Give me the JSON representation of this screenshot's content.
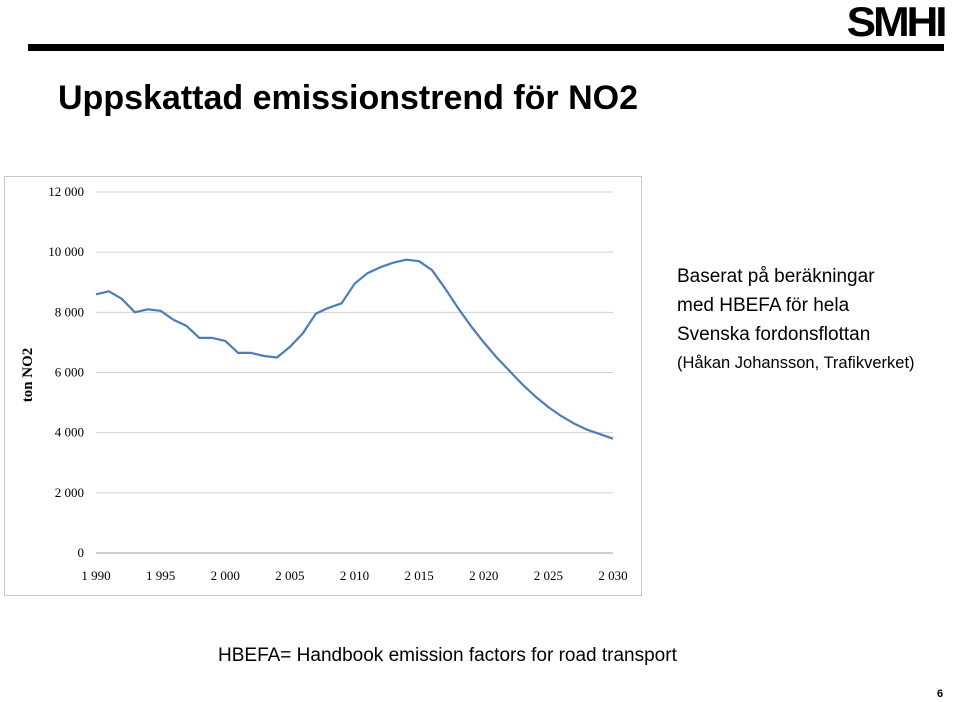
{
  "logo": {
    "text": "SMHI"
  },
  "title": "Uppskattad emissionstrend för NO2",
  "note": {
    "lines": [
      "Baserat på beräkningar",
      "med HBEFA för hela",
      "Svenska fordonsflottan",
      "(Håkan Johansson, Trafikverket)"
    ]
  },
  "footnote": "HBEFA= Handbook emission factors for road transport",
  "page_number": "6",
  "colors": {
    "line": "#4a7ebb",
    "grid": "#d0d0d0",
    "rule": "#000000"
  },
  "chart_data": {
    "type": "line",
    "title": "",
    "xlabel": "",
    "ylabel": "ton NO2",
    "xlim": [
      1990,
      2030
    ],
    "ylim": [
      0,
      12000
    ],
    "x_ticks": [
      1990,
      1995,
      2000,
      2005,
      2010,
      2015,
      2020,
      2025,
      2030
    ],
    "x_tick_labels": [
      "1 990",
      "1 995",
      "2 000",
      "2 005",
      "2 010",
      "2 015",
      "2 020",
      "2 025",
      "2 030"
    ],
    "y_ticks": [
      0,
      2000,
      4000,
      6000,
      8000,
      10000,
      12000
    ],
    "y_tick_labels": [
      "0",
      "2 000",
      "4 000",
      "6 000",
      "8 000",
      "10 000",
      "12 000"
    ],
    "grid": true,
    "series": [
      {
        "x": [
          1990,
          1991,
          1992,
          1993,
          1994,
          1995,
          1996,
          1997,
          1998,
          1999,
          2000,
          2001,
          2002,
          2003,
          2004,
          2005,
          2006,
          2007,
          2008,
          2009,
          2010,
          2011,
          2012,
          2013,
          2014,
          2015,
          2016,
          2017,
          2018,
          2019,
          2020,
          2021,
          2022,
          2023,
          2024,
          2025,
          2026,
          2027,
          2028,
          2029,
          2030
        ],
        "values": [
          8600,
          8700,
          8450,
          8000,
          8100,
          8050,
          7750,
          7550,
          7150,
          7150,
          7050,
          6650,
          6650,
          6550,
          6500,
          6850,
          7300,
          7950,
          8150,
          8300,
          8950,
          9300,
          9500,
          9650,
          9750,
          9700,
          9400,
          8800,
          8150,
          7550,
          7000,
          6500,
          6050,
          5600,
          5200,
          4850,
          4550,
          4300,
          4100,
          3950,
          3800
        ]
      }
    ]
  }
}
